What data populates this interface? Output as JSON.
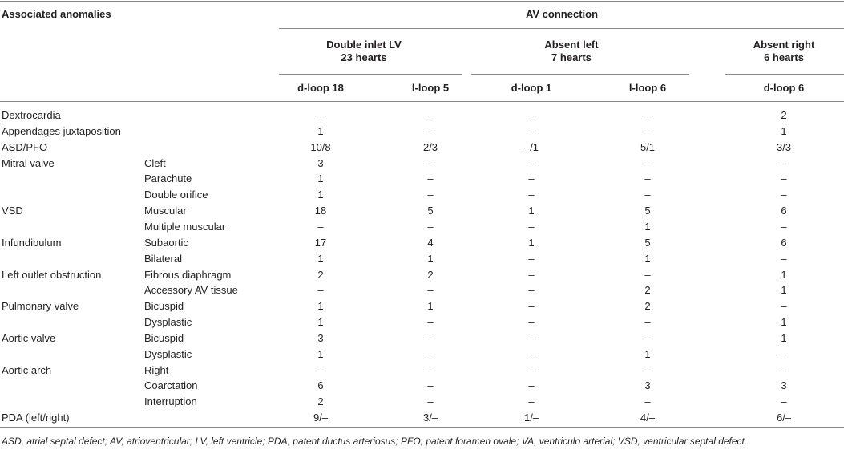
{
  "header": {
    "associated_anomalies": "Associated anomalies",
    "av_connection": "AV connection",
    "groups": [
      {
        "line1": "Double inlet LV",
        "line2": "23 hearts"
      },
      {
        "line1": "Absent left",
        "line2": "7 hearts"
      },
      {
        "line1": "Absent right",
        "line2": "6 hearts"
      }
    ],
    "subcolumns": [
      "d-loop 18",
      "l-loop 5",
      "d-loop 1",
      "l-loop 6",
      "d-loop 6"
    ]
  },
  "rows": [
    {
      "anomaly": "Dextrocardia",
      "subtype": "",
      "values": [
        "–",
        "–",
        "–",
        "–",
        "2"
      ]
    },
    {
      "anomaly": "Appendages juxtaposition",
      "subtype": "",
      "values": [
        "1",
        "–",
        "–",
        "–",
        "1"
      ]
    },
    {
      "anomaly": "ASD/PFO",
      "subtype": "",
      "values": [
        "10/8",
        "2/3",
        "–/1",
        "5/1",
        "3/3"
      ]
    },
    {
      "anomaly": "Mitral valve",
      "subtype": "Cleft",
      "values": [
        "3",
        "–",
        "–",
        "–",
        "–"
      ]
    },
    {
      "anomaly": "",
      "subtype": "Parachute",
      "values": [
        "1",
        "–",
        "–",
        "–",
        "–"
      ]
    },
    {
      "anomaly": "",
      "subtype": "Double orifice",
      "values": [
        "1",
        "–",
        "–",
        "–",
        "–"
      ]
    },
    {
      "anomaly": "VSD",
      "subtype": "Muscular",
      "values": [
        "18",
        "5",
        "1",
        "5",
        "6"
      ]
    },
    {
      "anomaly": "",
      "subtype": "Multiple muscular",
      "values": [
        "–",
        "–",
        "–",
        "1",
        "–"
      ]
    },
    {
      "anomaly": "Infundibulum",
      "subtype": "Subaortic",
      "values": [
        "17",
        "4",
        "1",
        "5",
        "6"
      ]
    },
    {
      "anomaly": "",
      "subtype": "Bilateral",
      "values": [
        "1",
        "1",
        "–",
        "1",
        "–"
      ]
    },
    {
      "anomaly": "Left outlet obstruction",
      "subtype": "Fibrous diaphragm",
      "values": [
        "2",
        "2",
        "–",
        "–",
        "1"
      ]
    },
    {
      "anomaly": "",
      "subtype": "Accessory AV tissue",
      "values": [
        "–",
        "–",
        "–",
        "2",
        "1"
      ]
    },
    {
      "anomaly": "Pulmonary valve",
      "subtype": "Bicuspid",
      "values": [
        "1",
        "1",
        "–",
        "2",
        "–"
      ]
    },
    {
      "anomaly": "",
      "subtype": "Dysplastic",
      "values": [
        "1",
        "–",
        "–",
        "–",
        "1"
      ]
    },
    {
      "anomaly": "Aortic valve",
      "subtype": "Bicuspid",
      "values": [
        "3",
        "–",
        "–",
        "–",
        "1"
      ]
    },
    {
      "anomaly": "",
      "subtype": "Dysplastic",
      "values": [
        "1",
        "–",
        "–",
        "1",
        "–"
      ]
    },
    {
      "anomaly": "Aortic arch",
      "subtype": "Right",
      "values": [
        "–",
        "–",
        "–",
        "–",
        "–"
      ]
    },
    {
      "anomaly": "",
      "subtype": "Coarctation",
      "values": [
        "6",
        "–",
        "–",
        "3",
        "3"
      ]
    },
    {
      "anomaly": "",
      "subtype": "Interruption",
      "values": [
        "2",
        "–",
        "–",
        "–",
        "–"
      ]
    },
    {
      "anomaly": "PDA (left/right)",
      "subtype": "",
      "values": [
        "9/–",
        "3/–",
        "1/–",
        "4/–",
        "6/–"
      ]
    }
  ],
  "footnote": "ASD, atrial septal defect; AV, atrioventricular; LV, left ventricle; PDA, patent ductus arteriosus; PFO, patent foramen ovale; VA, ventriculo arterial; VSD, ventricular septal defect."
}
